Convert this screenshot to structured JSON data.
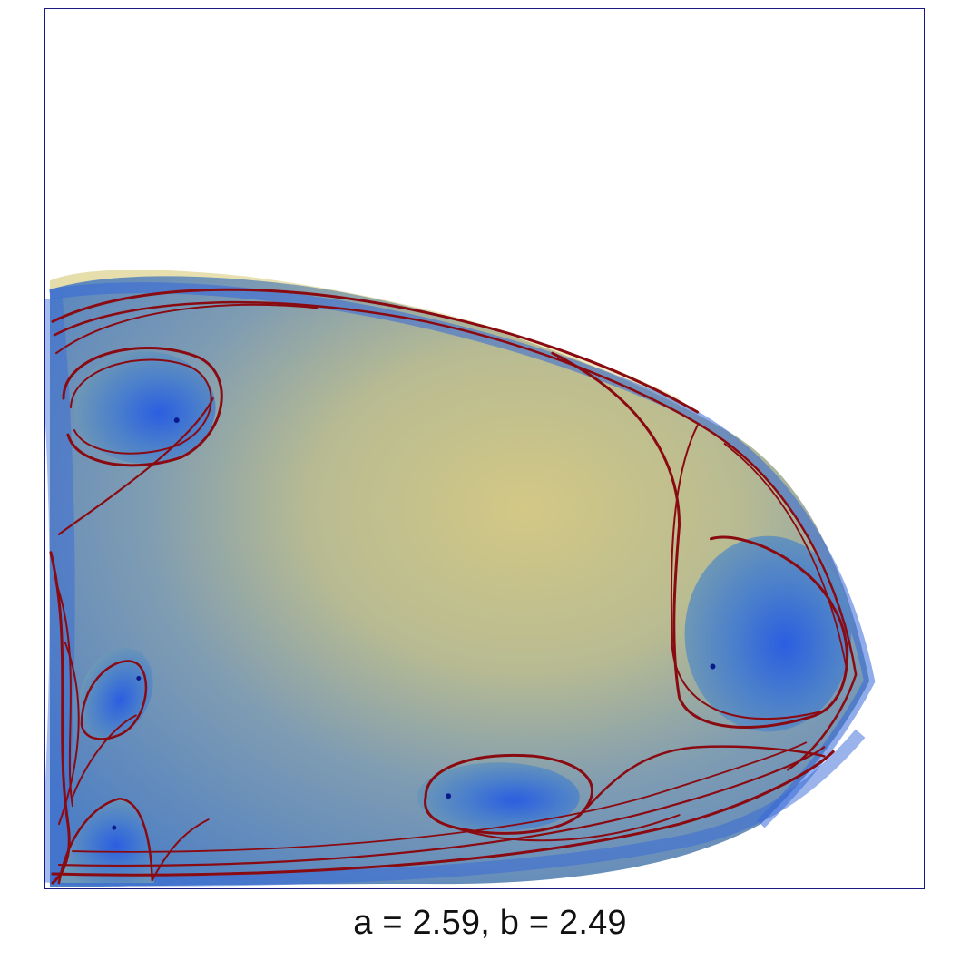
{
  "caption": "a = 2.59, b = 2.49",
  "colors": {
    "background": "#ffffff",
    "frame": "#1a1a80",
    "fill_center": "#cfc68a",
    "fill_mid": "#6e96b4",
    "fill_edge": "#3a6fd6",
    "curve": "#8a0a12",
    "focus": "#0b1a8a"
  }
}
